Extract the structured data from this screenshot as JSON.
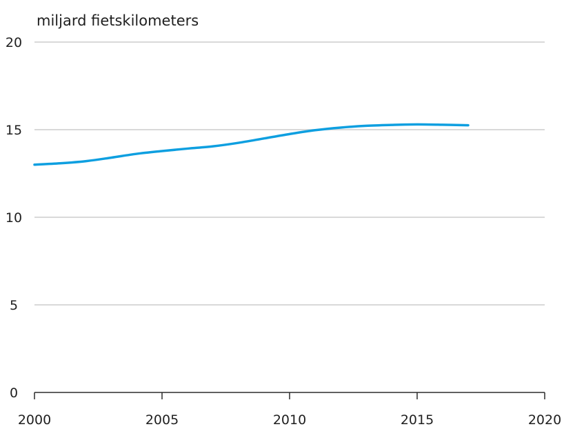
{
  "chart_data": {
    "type": "line",
    "ylabel": "miljard fietskilometers",
    "xlabel": "",
    "xlim": [
      2000,
      2020
    ],
    "ylim": [
      0,
      20
    ],
    "x_ticks": [
      2000,
      2005,
      2010,
      2015,
      2020
    ],
    "y_ticks": [
      0,
      5,
      10,
      15,
      20
    ],
    "grid": "horizontal",
    "series": [
      {
        "color": "#0e9fe0",
        "x": [
          2000,
          2001,
          2002,
          2003,
          2004,
          2005,
          2006,
          2007,
          2008,
          2009,
          2010,
          2011,
          2012,
          2013,
          2014,
          2015,
          2016,
          2017
        ],
        "y": [
          13.0,
          13.08,
          13.2,
          13.4,
          13.62,
          13.78,
          13.92,
          14.05,
          14.25,
          14.5,
          14.75,
          14.97,
          15.12,
          15.22,
          15.27,
          15.3,
          15.28,
          15.25
        ]
      }
    ]
  }
}
